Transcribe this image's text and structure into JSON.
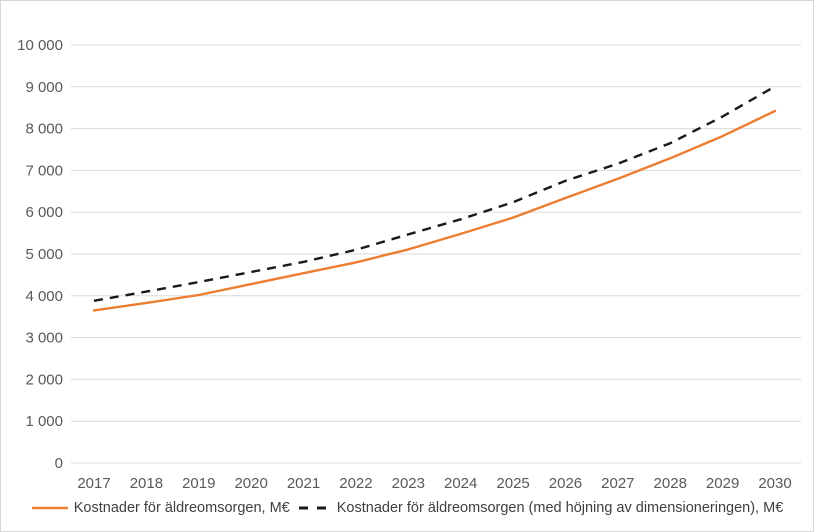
{
  "chart_data": {
    "type": "line",
    "title": "",
    "xlabel": "",
    "ylabel": "",
    "x": [
      2017,
      2018,
      2019,
      2020,
      2021,
      2022,
      2023,
      2024,
      2025,
      2026,
      2027,
      2028,
      2029,
      2030
    ],
    "series": [
      {
        "name": "Kostnader för äldreomsorgen, M€",
        "style": "solid",
        "color": "#ED7D31",
        "values": [
          3650,
          3830,
          4020,
          4280,
          4540,
          4800,
          5110,
          5480,
          5870,
          6340,
          6800,
          7290,
          7820,
          8420
        ]
      },
      {
        "name": "Kostnader för äldreomsorgen (med höjning av dimensioneringen),  M€",
        "style": "dashed",
        "color": "#1A1A1A",
        "values": [
          3880,
          4100,
          4330,
          4570,
          4810,
          5100,
          5470,
          5830,
          6240,
          6750,
          7160,
          7650,
          8290,
          9010
        ]
      }
    ],
    "ylim": [
      0,
      10000
    ],
    "ytick_values": [
      0,
      1000,
      2000,
      3000,
      4000,
      5000,
      6000,
      7000,
      8000,
      9000,
      10000
    ],
    "ytick_labels": [
      "0",
      "1 000",
      "2 000",
      "3 000",
      "4 000",
      "5 000",
      "6 000",
      "7 000",
      "8 000",
      "9 000",
      "10 000"
    ],
    "grid": "horizontal",
    "gridline_color": "#D9D9D9",
    "axis_label_color": "#595959",
    "legend_position": "bottom"
  }
}
